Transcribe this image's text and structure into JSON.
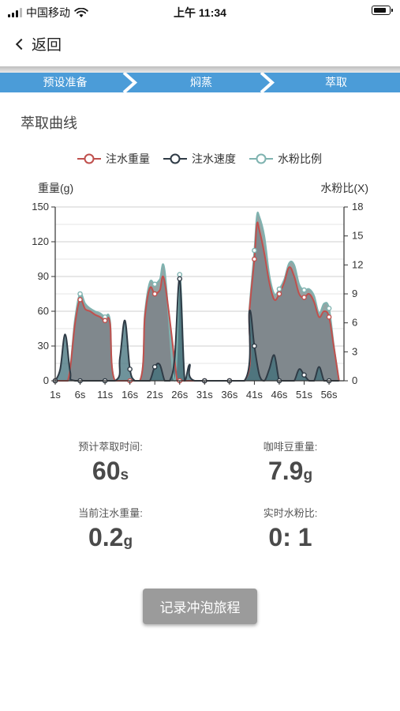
{
  "status_bar": {
    "carrier": "中国移动",
    "time": "上午 11:34"
  },
  "nav": {
    "back_label": "返回"
  },
  "steps": [
    {
      "label": "预设准备"
    },
    {
      "label": "焖蒸"
    },
    {
      "label": "萃取"
    }
  ],
  "section_title": "萃取曲线",
  "colors": {
    "weight": "#c0504d",
    "speed": "#2f3b46",
    "ratio": "#7fb3b0",
    "step_bar": "#4b9cd8",
    "fill": "#7d8489"
  },
  "chart_data": {
    "type": "area",
    "title": "",
    "legend": {
      "position": "top",
      "entries": [
        "注水重量",
        "注水速度",
        "水粉比例"
      ]
    },
    "ylabel_left": "重量(g)",
    "ylabel_right": "水粉比(X)",
    "ylim_left": [
      0,
      150
    ],
    "ylim_right": [
      0,
      18
    ],
    "yticks_left": [
      "0",
      "30",
      "60",
      "90",
      "120",
      "150"
    ],
    "yticks_right": [
      "0",
      "3",
      "6",
      "9",
      "12",
      "15",
      "18"
    ],
    "xticks": [
      "1s",
      "6s",
      "11s",
      "16s",
      "21s",
      "26s",
      "31s",
      "36s",
      "41s",
      "46s",
      "51s",
      "56s"
    ],
    "xlim": [
      1,
      59
    ],
    "grid": true,
    "series": [
      {
        "name": "注水重量",
        "x": [
          1,
          3.5,
          5,
          6,
          7,
          8,
          9,
          10,
          11,
          12,
          13,
          18,
          19,
          20,
          21,
          22,
          23,
          25.5,
          26,
          27,
          28,
          39,
          40,
          41,
          41.5,
          42,
          43,
          44,
          45,
          46,
          47,
          48,
          49,
          50,
          51,
          52,
          53,
          54,
          55,
          56,
          57,
          58
        ],
        "y": [
          0,
          0,
          50,
          70,
          62,
          60,
          57,
          55,
          52,
          50,
          0,
          0,
          55,
          80,
          75,
          78,
          85,
          0,
          0,
          0,
          0,
          0,
          60,
          105,
          135,
          130,
          110,
          85,
          70,
          75,
          85,
          98,
          90,
          75,
          72,
          75,
          68,
          55,
          60,
          55,
          28,
          0
        ]
      },
      {
        "name": "注水速度",
        "x": [
          1,
          2,
          3,
          4,
          5,
          13,
          14,
          15,
          16,
          17,
          18,
          19,
          20,
          21,
          22,
          23,
          24,
          25,
          26,
          27,
          28,
          29,
          39,
          40,
          41,
          42,
          43,
          44,
          45,
          46,
          47,
          48,
          49,
          50,
          51,
          52,
          53,
          54,
          55,
          56,
          57,
          58
        ],
        "y": [
          0,
          10,
          40,
          8,
          0,
          0,
          20,
          52,
          10,
          0,
          0,
          0,
          0,
          12,
          14,
          0,
          0,
          20,
          88,
          0,
          14,
          0,
          0,
          60,
          30,
          5,
          0,
          10,
          22,
          0,
          0,
          0,
          0,
          10,
          5,
          0,
          0,
          12,
          0,
          0,
          0,
          0
        ]
      },
      {
        "name": "水粉比例",
        "x": [
          1,
          3.5,
          5,
          6,
          7,
          8,
          9,
          10,
          11,
          12,
          13,
          18,
          19,
          20,
          21,
          22,
          23,
          25,
          26,
          27,
          28,
          39,
          40,
          41,
          41.5,
          42,
          43,
          44,
          45,
          46,
          47,
          48,
          49,
          50,
          51,
          52,
          53,
          54,
          55,
          56,
          57,
          58
        ],
        "y": [
          0,
          0,
          6.5,
          9,
          8,
          7.5,
          7.2,
          7,
          6.6,
          6.3,
          0,
          0,
          7,
          10.2,
          10,
          10.5,
          11.4,
          0,
          11,
          0,
          0,
          0,
          7.5,
          13.5,
          17.1,
          17,
          15,
          11,
          9,
          9.5,
          10.5,
          12.2,
          12,
          10,
          9.4,
          9.5,
          8.8,
          7,
          8,
          7.5,
          3.5,
          0
        ]
      }
    ]
  },
  "stats": {
    "brew_time": {
      "label": "预计萃取时间:",
      "value": "60",
      "unit": "s"
    },
    "bean_weight": {
      "label": "咖啡豆重量:",
      "value": "7.9",
      "unit": "g"
    },
    "current_weight": {
      "label": "当前注水重量:",
      "value": "0.2",
      "unit": "g"
    },
    "realtime_ratio": {
      "label": "实时水粉比:",
      "value": "0: 1"
    }
  },
  "record_button": {
    "label": "记录冲泡旅程"
  }
}
